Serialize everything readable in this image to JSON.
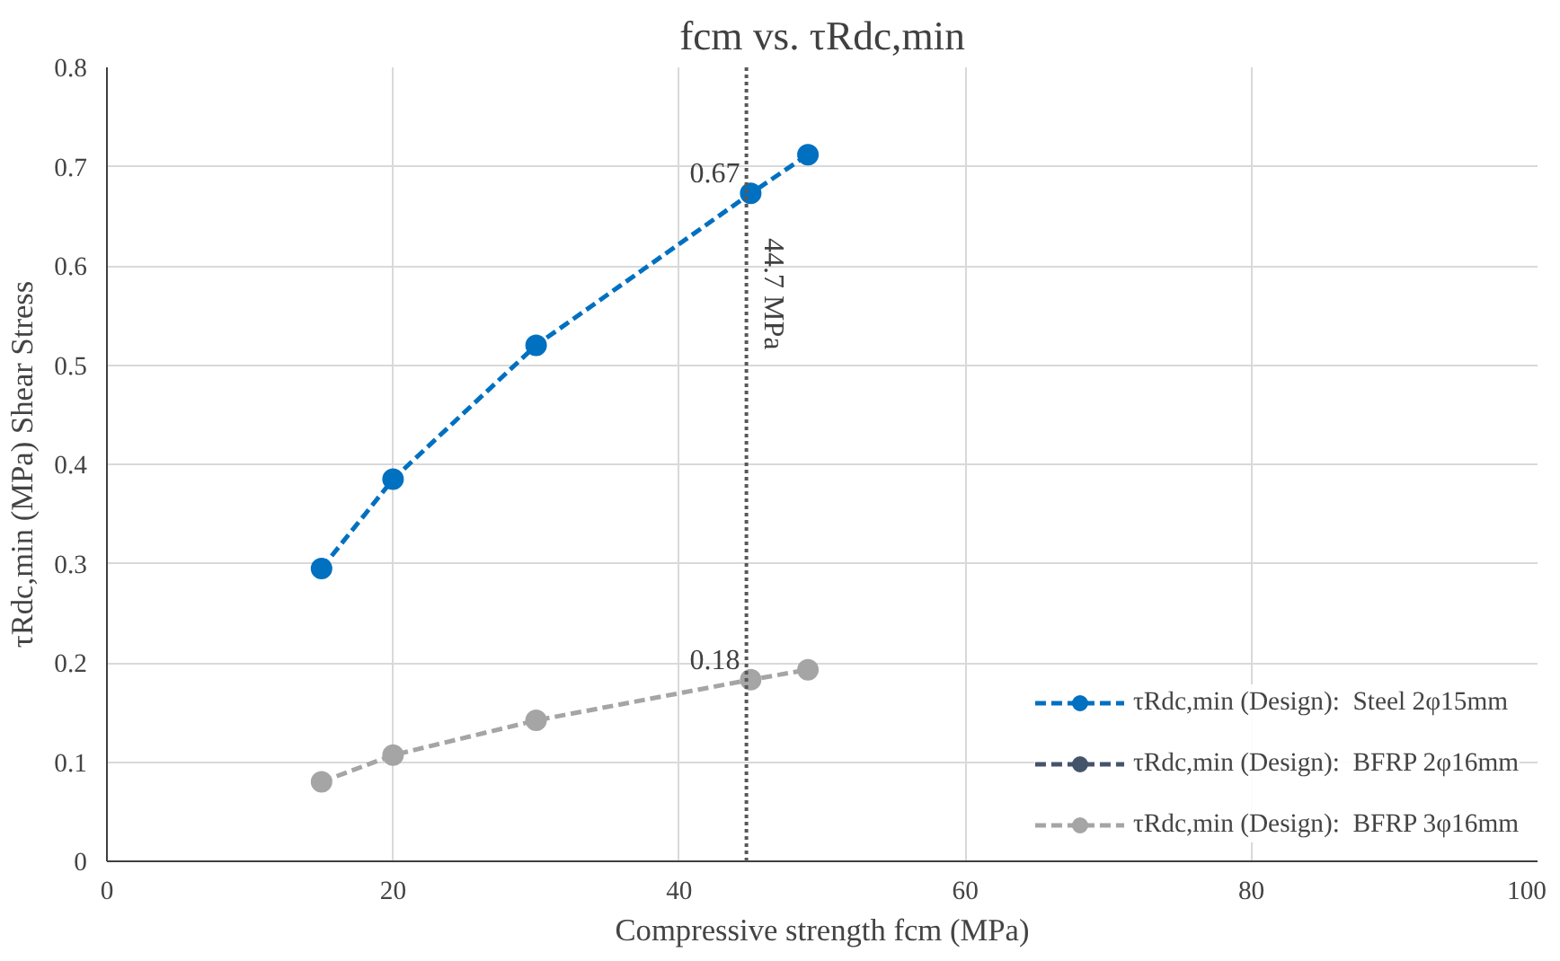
{
  "chart_data": {
    "type": "line",
    "title": "fcm vs. τRdc,min",
    "xlabel": "Compressive strength fcm (MPa)",
    "ylabel": "τRdc,min (MPa) Shear Stress",
    "x": [
      15,
      20,
      30,
      45,
      49
    ],
    "series": [
      {
        "name": "τRdc,min (Design):  Steel 2φ15mm",
        "color": "#0070c0",
        "values": [
          0.295,
          0.385,
          0.52,
          0.673,
          0.712
        ]
      },
      {
        "name": "τRdc,min (Design):  BFRP 2φ16mm",
        "color": "#44546a",
        "values": [
          null,
          null,
          null,
          null,
          null
        ]
      },
      {
        "name": "τRdc,min (Design):  BFRP 3φ16mm",
        "color": "#a5a5a5",
        "values": [
          0.08,
          0.107,
          0.142,
          0.183,
          0.193
        ]
      }
    ],
    "xlim": [
      0,
      100
    ],
    "xticks": [
      0,
      20,
      40,
      60,
      80,
      100
    ],
    "ylim": [
      0,
      0.8
    ],
    "yticks": [
      0,
      0.1,
      0.2,
      0.3,
      0.4,
      0.5,
      0.6,
      0.7,
      0.8
    ],
    "ref_lines": [
      {
        "axis": "x",
        "value": 44.7,
        "label": "44.7 MPa",
        "line_style": "dotted",
        "color": "#595959"
      }
    ],
    "annotations": [
      {
        "text": "0.67",
        "x": 45,
        "y": 0.673
      },
      {
        "text": "0.18",
        "x": 45,
        "y": 0.183
      }
    ],
    "grid": true,
    "legend": "bottom right",
    "marker": "circle",
    "line_style": "dashed"
  }
}
